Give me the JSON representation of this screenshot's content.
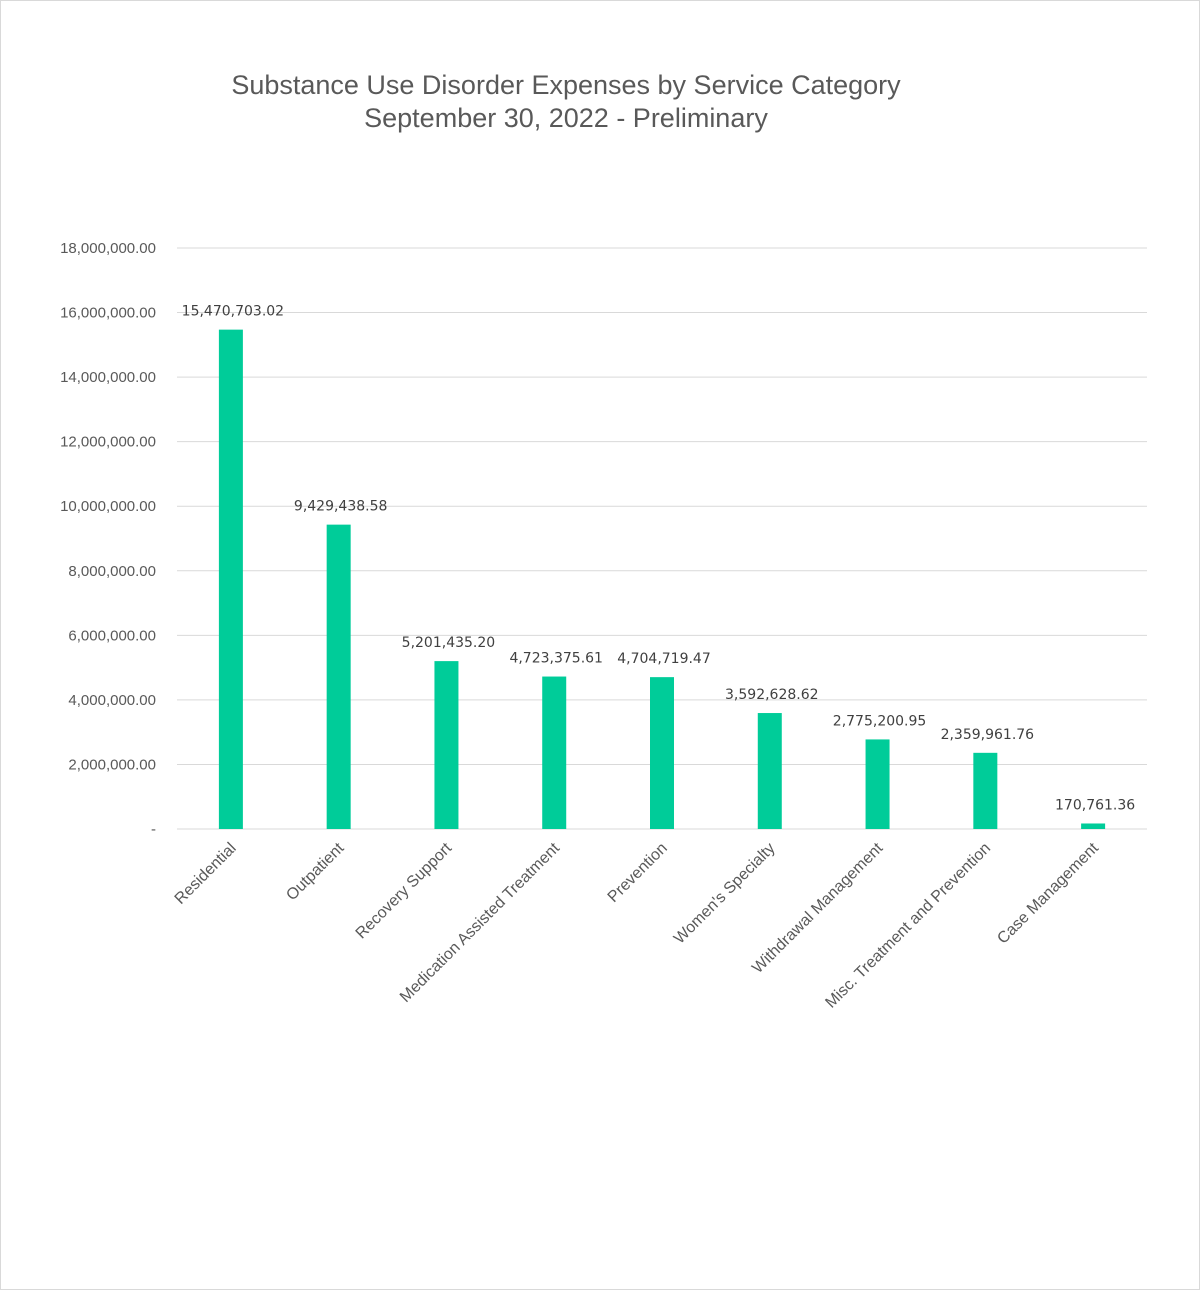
{
  "chart_data": {
    "type": "bar",
    "title": "Substance Use Disorder Expenses by Service Category",
    "subtitle": "September 30, 2022 - Preliminary",
    "xlabel": "",
    "ylabel": "",
    "ylim": [
      0,
      18000000
    ],
    "yticks": [
      0,
      2000000,
      4000000,
      6000000,
      8000000,
      10000000,
      12000000,
      14000000,
      16000000,
      18000000
    ],
    "ytick_labels": [
      "-",
      "2,000,000.00",
      "4,000,000.00",
      "6,000,000.00",
      "8,000,000.00",
      "10,000,000.00",
      "12,000,000.00",
      "14,000,000.00",
      "16,000,000.00",
      "18,000,000.00"
    ],
    "grid": true,
    "legend": "none",
    "bar_color": "#00CC99",
    "categories": [
      "Residential",
      "Outpatient",
      "Recovery Support",
      "Medication Assisted Treatment",
      "Prevention",
      "Women's Specialty",
      "Withdrawal Management",
      "Misc. Treatment and Prevention",
      "Case Management"
    ],
    "values": [
      15470703.02,
      9429438.58,
      5201435.2,
      4723375.61,
      4704719.47,
      3592628.62,
      2775200.95,
      2359961.76,
      170761.36
    ],
    "data_labels": [
      "15,470,703.02",
      "9,429,438.58",
      "5,201,435.20",
      "4,723,375.61",
      "4,704,719.47",
      "3,592,628.62",
      "2,775,200.95",
      "2,359,961.76",
      "170,761.36"
    ]
  }
}
